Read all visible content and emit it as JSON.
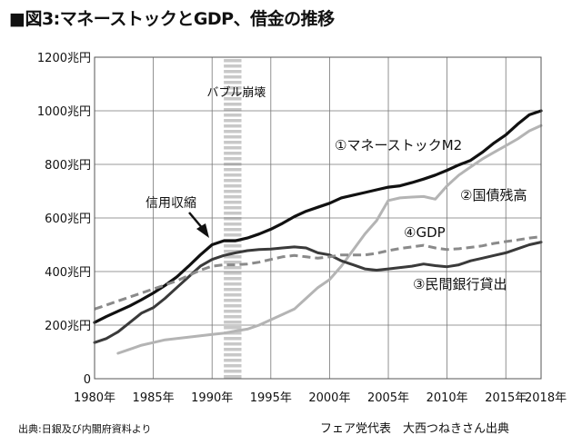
{
  "title": "■図3:マネーストックとGDP、借金の推移",
  "source_left": "出典:日銀及び内閣府資料より",
  "source_right": "フェア党代表　大西つねきさん出典",
  "chart_data": {
    "type": "line",
    "title": "■図3:マネーストックとGDP、借金の推移",
    "ylim": [
      0,
      1200
    ],
    "xlim": [
      1980,
      2018
    ],
    "grid": true,
    "y_ticks": [
      {
        "value": 1200,
        "label": "1200兆円"
      },
      {
        "value": 1000,
        "label": "1000兆円"
      },
      {
        "value": 800,
        "label": "800兆円"
      },
      {
        "value": 600,
        "label": "600兆円"
      },
      {
        "value": 400,
        "label": "400兆円"
      },
      {
        "value": 200,
        "label": "200兆円"
      },
      {
        "value": 0,
        "label": "0"
      }
    ],
    "x_ticks": [
      {
        "value": 1980,
        "label": "1980年"
      },
      {
        "value": 1985,
        "label": "1985年"
      },
      {
        "value": 1990,
        "label": "1990年"
      },
      {
        "value": 1995,
        "label": "1995年"
      },
      {
        "value": 2000,
        "label": "2000年"
      },
      {
        "value": 2005,
        "label": "2005年"
      },
      {
        "value": 2010,
        "label": "2010年"
      },
      {
        "value": 2015,
        "label": "2015年"
      },
      {
        "value": 2018,
        "label": "2018年"
      }
    ],
    "bubble_band": {
      "start": 1991,
      "end": 1992.5,
      "label": "バブル崩壊"
    },
    "series": [
      {
        "name": "①マネーストックM2",
        "color": "#111111",
        "style": "solid",
        "x": [
          1980,
          1981,
          1982,
          1983,
          1984,
          1985,
          1986,
          1987,
          1988,
          1989,
          1990,
          1991,
          1992,
          1993,
          1994,
          1995,
          1996,
          1997,
          1998,
          1999,
          2000,
          2001,
          2002,
          2003,
          2004,
          2005,
          2006,
          2007,
          2008,
          2009,
          2010,
          2011,
          2012,
          2013,
          2014,
          2015,
          2016,
          2017,
          2018
        ],
        "values": [
          210,
          232,
          252,
          272,
          295,
          320,
          348,
          380,
          420,
          462,
          500,
          515,
          515,
          525,
          540,
          558,
          580,
          605,
          625,
          640,
          655,
          675,
          685,
          695,
          705,
          715,
          720,
          732,
          745,
          760,
          778,
          798,
          815,
          845,
          880,
          910,
          950,
          985,
          1000
        ]
      },
      {
        "name": "②国債残高",
        "color": "#b4b4b4",
        "style": "solid",
        "x": [
          1982,
          1983,
          1984,
          1985,
          1986,
          1987,
          1988,
          1989,
          1990,
          1991,
          1992,
          1993,
          1994,
          1995,
          1996,
          1997,
          1998,
          1999,
          2000,
          2001,
          2002,
          2003,
          2004,
          2005,
          2006,
          2007,
          2008,
          2009,
          2010,
          2011,
          2012,
          2013,
          2014,
          2015,
          2016,
          2017,
          2018
        ],
        "values": [
          95,
          110,
          125,
          135,
          145,
          150,
          155,
          160,
          165,
          170,
          178,
          185,
          200,
          220,
          240,
          260,
          300,
          340,
          370,
          420,
          480,
          540,
          590,
          665,
          675,
          678,
          680,
          670,
          720,
          760,
          790,
          820,
          845,
          870,
          895,
          925,
          945
        ]
      },
      {
        "name": "③民間銀行貸出",
        "color": "#3a3a3a",
        "style": "solid",
        "x": [
          1980,
          1981,
          1982,
          1983,
          1984,
          1985,
          1986,
          1987,
          1988,
          1989,
          1990,
          1991,
          1992,
          1993,
          1994,
          1995,
          1996,
          1997,
          1998,
          1999,
          2000,
          2001,
          2002,
          2003,
          2004,
          2005,
          2006,
          2007,
          2008,
          2009,
          2010,
          2011,
          2012,
          2013,
          2014,
          2015,
          2016,
          2017,
          2018
        ],
        "values": [
          135,
          150,
          175,
          210,
          245,
          265,
          300,
          340,
          380,
          420,
          445,
          460,
          470,
          478,
          482,
          484,
          488,
          492,
          488,
          470,
          462,
          440,
          425,
          410,
          405,
          410,
          415,
          420,
          428,
          422,
          418,
          425,
          440,
          450,
          460,
          470,
          485,
          500,
          510
        ]
      },
      {
        "name": "④GDP",
        "color": "#8a8a8a",
        "style": "dashed",
        "x": [
          1980,
          1981,
          1982,
          1983,
          1984,
          1985,
          1986,
          1987,
          1988,
          1989,
          1990,
          1991,
          1992,
          1993,
          1994,
          1995,
          1996,
          1997,
          1998,
          1999,
          2000,
          2001,
          2002,
          2003,
          2004,
          2005,
          2006,
          2007,
          2008,
          2009,
          2010,
          2011,
          2012,
          2013,
          2014,
          2015,
          2016,
          2017,
          2018
        ],
        "values": [
          260,
          275,
          290,
          305,
          320,
          335,
          350,
          365,
          385,
          405,
          420,
          425,
          425,
          428,
          435,
          445,
          455,
          460,
          455,
          450,
          455,
          462,
          462,
          462,
          468,
          478,
          486,
          492,
          498,
          488,
          482,
          485,
          490,
          496,
          505,
          512,
          518,
          525,
          530
        ]
      }
    ],
    "annotations": [
      {
        "text": "①マネーストックM2",
        "series": 0
      },
      {
        "text": "②国債残高",
        "series": 1
      },
      {
        "text": "③民間銀行貸出",
        "series": 2
      },
      {
        "text": "④GDP",
        "series": 3
      },
      {
        "text": "信用収縮"
      }
    ]
  }
}
